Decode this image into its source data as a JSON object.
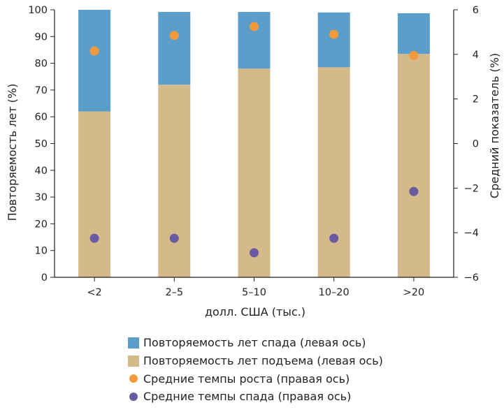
{
  "chart_data": {
    "type": "bar",
    "stacked": true,
    "dual_axis": true,
    "categories": [
      "<2",
      "2–5",
      "5–10",
      "10–20",
      ">20"
    ],
    "xlabel": "долл. США (тыс.)",
    "ylabel_left": "Повторяемость лет (%)",
    "ylabel_right": "Средний показатель (%)",
    "ylim_left": [
      0,
      100
    ],
    "yticks_left": [
      "0",
      "10",
      "20",
      "30",
      "40",
      "50",
      "60",
      "70",
      "80",
      "90",
      "100"
    ],
    "ylim_right": [
      -6,
      6
    ],
    "yticks_right": [
      "−6",
      "−4",
      "−2",
      "0",
      "2",
      "4",
      "6"
    ],
    "grid": false,
    "legend_position": "bottom",
    "series": [
      {
        "name": "Повторяемость лет подъема (левая ось)",
        "kind": "bar",
        "axis": "left",
        "color": "#d4b98b",
        "values": [
          62,
          72,
          78,
          78.5,
          83.5
        ]
      },
      {
        "name": "Повторяемость лет спада (левая ось)",
        "kind": "bar",
        "axis": "left",
        "color": "#5b9ec9",
        "values": [
          38,
          27.2,
          21.2,
          20.5,
          15.2
        ]
      },
      {
        "name": "Средние темпы роста (правая ось)",
        "kind": "scatter",
        "axis": "right",
        "color": "#f59a3c",
        "values": [
          4.15,
          4.85,
          5.25,
          4.9,
          3.95
        ]
      },
      {
        "name": "Средние темпы спада (правая ось)",
        "kind": "scatter",
        "axis": "right",
        "color": "#6a5a9f",
        "values": [
          -4.25,
          -4.25,
          -4.9,
          -4.25,
          -2.15
        ]
      }
    ],
    "legend": [
      {
        "label": "Повторяемость лет спада (левая ось)",
        "marker": "square",
        "color": "#5b9ec9"
      },
      {
        "label": "Повторяемость лет подъема (левая ось)",
        "marker": "square",
        "color": "#d4b98b"
      },
      {
        "label": "Средние темпы роста (правая ось)",
        "marker": "circle",
        "color": "#f59a3c"
      },
      {
        "label": "Средние темпы спада (правая ось)",
        "marker": "circle",
        "color": "#6a5a9f"
      }
    ]
  }
}
